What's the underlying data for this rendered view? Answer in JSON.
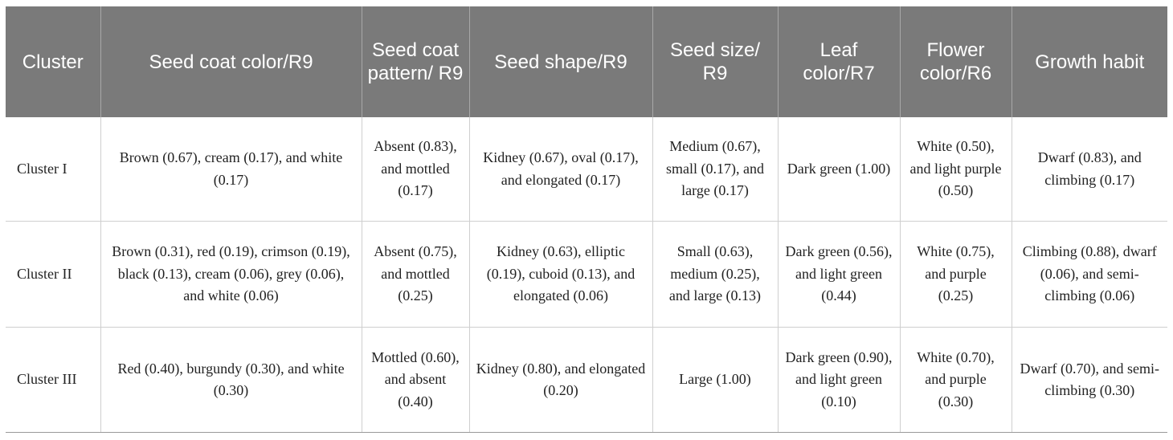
{
  "table": {
    "headers": [
      "Cluster",
      "Seed coat color/R9",
      "Seed coat pattern/ R9",
      "Seed shape/R9",
      "Seed size/ R9",
      "Leaf color/R7",
      "Flower color/R6",
      "Growth habit"
    ],
    "rows": [
      {
        "cluster": "Cluster I",
        "seed_coat_color": "Brown (0.67), cream (0.17), and white (0.17)",
        "seed_coat_pattern": "Absent (0.83), and mottled (0.17)",
        "seed_shape": "Kidney (0.67), oval (0.17), and elongated (0.17)",
        "seed_size": "Medium (0.67), small (0.17), and large (0.17)",
        "leaf_color": "Dark green (1.00)",
        "flower_color": "White (0.50), and light purple (0.50)",
        "growth_habit": "Dwarf (0.83), and climbing (0.17)"
      },
      {
        "cluster": "Cluster II",
        "seed_coat_color": "Brown (0.31), red (0.19), crimson (0.19), black (0.13), cream (0.06), grey (0.06), and white (0.06)",
        "seed_coat_pattern": "Absent (0.75), and mottled (0.25)",
        "seed_shape": "Kidney (0.63), elliptic (0.19), cuboid (0.13), and elongated (0.06)",
        "seed_size": "Small (0.63), medium (0.25), and large (0.13)",
        "leaf_color": "Dark green (0.56), and light green (0.44)",
        "flower_color": "White (0.75), and purple (0.25)",
        "growth_habit": "Climbing (0.88), dwarf (0.06), and semi-climbing (0.06)"
      },
      {
        "cluster": "Cluster III",
        "seed_coat_color": "Red (0.40), burgundy (0.30), and white (0.30)",
        "seed_coat_pattern": "Mottled (0.60), and absent (0.40)",
        "seed_shape": "Kidney (0.80), and elongated (0.20)",
        "seed_size": "Large (1.00)",
        "leaf_color": "Dark green (0.90), and light green (0.10)",
        "flower_color": "White (0.70), and purple (0.30)",
        "growth_habit": "Dwarf (0.70), and semi-climbing (0.30)"
      }
    ]
  }
}
